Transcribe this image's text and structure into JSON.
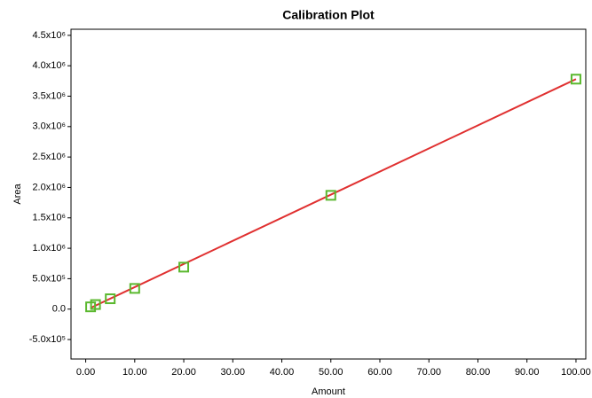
{
  "chart_data": {
    "type": "scatter",
    "title": "Calibration Plot",
    "x_label": "Amount",
    "y_label": "Area",
    "x": [
      1,
      2,
      5,
      10,
      20,
      50,
      100
    ],
    "values": [
      37000,
      75000,
      170000,
      340000,
      690000,
      1870000,
      3780000
    ],
    "color": "#5ab82e",
    "fit_line": {
      "x": [
        1,
        100
      ],
      "values": [
        20000,
        3780000
      ],
      "color": "#e03030"
    },
    "xlim": [
      -3,
      102
    ],
    "xticks": [
      {
        "value": 0,
        "label": "0.00"
      },
      {
        "value": 10,
        "label": "10.00"
      },
      {
        "value": 20,
        "label": "20.00"
      },
      {
        "value": 30,
        "label": "30.00"
      },
      {
        "value": 40,
        "label": "40.00"
      },
      {
        "value": 50,
        "label": "50.00"
      },
      {
        "value": 60,
        "label": "60.00"
      },
      {
        "value": 70,
        "label": "70.00"
      },
      {
        "value": 80,
        "label": "80.00"
      },
      {
        "value": 90,
        "label": "90.00"
      },
      {
        "value": 100,
        "label": "100.00"
      }
    ],
    "ylim": [
      -820000,
      4600000
    ],
    "yticks": [
      {
        "value": -500000,
        "label": "-5.0x10⁵"
      },
      {
        "value": 0,
        "label": "0.0"
      },
      {
        "value": 500000,
        "label": "5.0x10⁵"
      },
      {
        "value": 1000000,
        "label": "1.0x10⁶"
      },
      {
        "value": 1500000,
        "label": "1.5x10⁶"
      },
      {
        "value": 2000000,
        "label": "2.0x10⁶"
      },
      {
        "value": 2500000,
        "label": "2.5x10⁶"
      },
      {
        "value": 3000000,
        "label": "3.0x10⁶"
      },
      {
        "value": 3500000,
        "label": "3.5x10⁶"
      },
      {
        "value": 4000000,
        "label": "4.0x10⁶"
      },
      {
        "value": 4500000,
        "label": "4.5x10⁶"
      }
    ],
    "grid": false
  }
}
